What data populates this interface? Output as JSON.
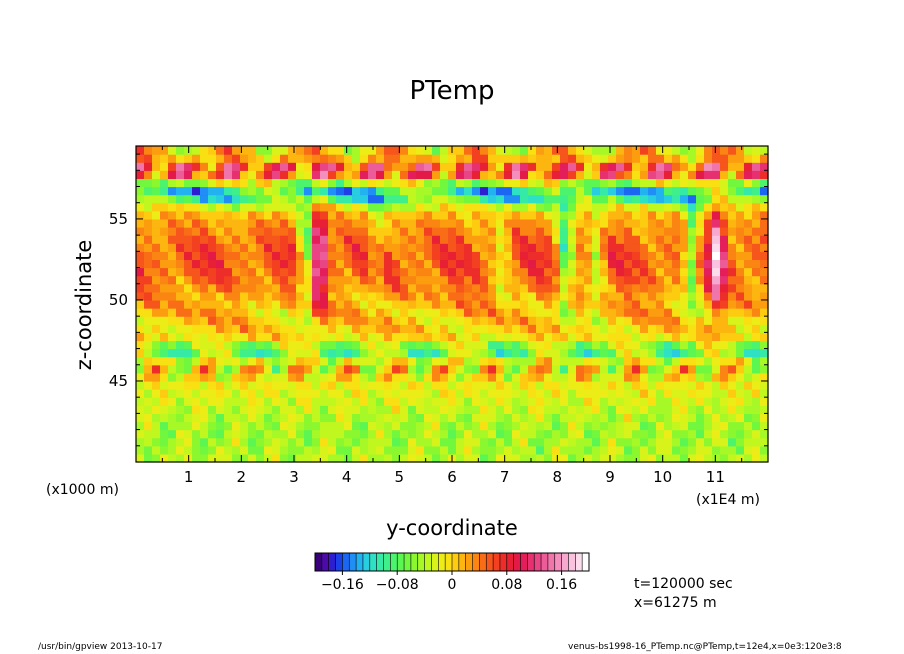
{
  "chart_data": {
    "type": "heatmap",
    "title": "PTemp",
    "xlabel": "y-coordinate",
    "ylabel": "z-coordinate",
    "x_unit_label": "(x1E4 m)",
    "y_unit_label": "(x1000 m)",
    "xlim": [
      0,
      120000
    ],
    "ylim": [
      40000,
      59500
    ],
    "x_ticks": [
      {
        "value": 10000,
        "label": "1"
      },
      {
        "value": 20000,
        "label": "2"
      },
      {
        "value": 30000,
        "label": "3"
      },
      {
        "value": 40000,
        "label": "4"
      },
      {
        "value": 50000,
        "label": "5"
      },
      {
        "value": 60000,
        "label": "6"
      },
      {
        "value": 70000,
        "label": "7"
      },
      {
        "value": 80000,
        "label": "8"
      },
      {
        "value": 90000,
        "label": "9"
      },
      {
        "value": 100000,
        "label": "10"
      },
      {
        "value": 110000,
        "label": "11"
      }
    ],
    "y_ticks": [
      {
        "value": 45000,
        "label": "45"
      },
      {
        "value": 50000,
        "label": "50"
      },
      {
        "value": 55000,
        "label": "55"
      }
    ],
    "colorbar": {
      "min": -0.2,
      "max": 0.2,
      "levels": 40,
      "ticks": [
        {
          "value": -0.16,
          "label": "−0.16"
        },
        {
          "value": -0.08,
          "label": "−0.08"
        },
        {
          "value": 0,
          "label": "0"
        },
        {
          "value": 0.08,
          "label": "0.08"
        },
        {
          "value": 0.16,
          "label": "0.16"
        }
      ]
    },
    "approx_features": [
      {
        "desc": "background field",
        "value": 0.0
      },
      {
        "z_range": [
          40000,
          44000
        ],
        "value": -0.04
      },
      {
        "z_range": [
          49500,
          55500
        ],
        "value": 0.05
      },
      {
        "z_range": [
          46500,
          47500
        ],
        "value": -0.1
      },
      {
        "z_range": [
          56000,
          58000
        ],
        "value": -0.14
      },
      {
        "z_range": [
          58000,
          59500
        ],
        "value": 0.16
      }
    ]
  },
  "annotations": {
    "time": "t=120000 sec",
    "xpos": "x=61275 m"
  },
  "footer": {
    "left": "/usr/bin/gpview   2013-10-17",
    "right": "venus-bs1998-16_PTemp.nc@PTemp,t=12e4,x=0e3:120e3:8"
  },
  "colors": {
    "palette": [
      "#3a007a",
      "#4b0ba8",
      "#2d1fd0",
      "#1c3fe8",
      "#1b67f2",
      "#1f8ef5",
      "#22b2f0",
      "#28cde0",
      "#2ee0c4",
      "#34eaa6",
      "#3ff08a",
      "#4cf46e",
      "#5cf653",
      "#71f73d",
      "#8bf82f",
      "#a6f826",
      "#c0f71f",
      "#d8f31a",
      "#eced17",
      "#f8e012",
      "#fdcc10",
      "#fdb50f",
      "#fc9d10",
      "#fa8512",
      "#f86d16",
      "#f6551b",
      "#f24021",
      "#ed2d2a",
      "#e72035",
      "#e31a47",
      "#e41e5a",
      "#e6306f",
      "#e94584",
      "#ec5c98",
      "#f075ab",
      "#f48ebd",
      "#f7a8ce",
      "#fac2de",
      "#fcdbec",
      "#ffffff"
    ]
  }
}
